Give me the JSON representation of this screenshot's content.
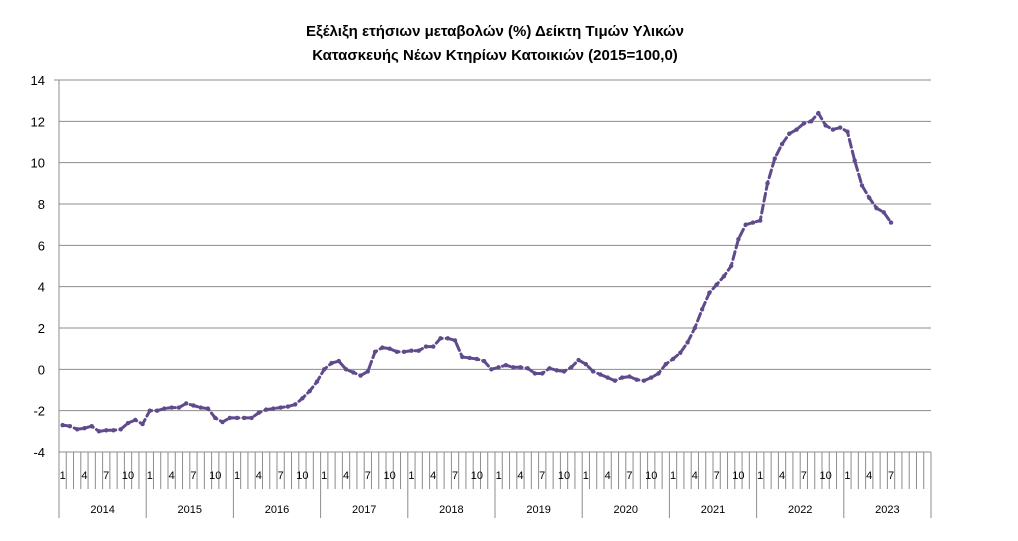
{
  "chart_data": {
    "type": "line",
    "title_line1": "Εξέλιξη ετήσιων μεταβολών (%) Δείκτη Τιμών Υλικών",
    "title_line2": "Κατασκευής Νέων Κτηρίων Κατοικιών (2015=100,0)",
    "ylim": [
      -4,
      14
    ],
    "y_ticks": [
      14,
      12,
      10,
      8,
      6,
      4,
      2,
      0,
      -2,
      -4
    ],
    "grid": true,
    "legend": "none",
    "month_tick_labels": [
      "1",
      "4",
      "7",
      "10"
    ],
    "years": [
      "2014",
      "2015",
      "2016",
      "2017",
      "2018",
      "2019",
      "2020",
      "2021",
      "2022",
      "2023"
    ],
    "series_color": "#5f4b8b",
    "line_style": "dashed",
    "series": [
      {
        "values": [
          -2.7,
          -2.75,
          -2.9,
          -2.85,
          -2.75,
          -3.0,
          -2.95,
          -2.95,
          -2.9,
          -2.6,
          -2.45,
          -2.65,
          -2.0,
          -2.0,
          -1.9,
          -1.85,
          -1.85,
          -1.65,
          -1.75,
          -1.85,
          -1.9,
          -2.35,
          -2.55,
          -2.35,
          -2.35,
          -2.35,
          -2.35,
          -2.1,
          -1.95,
          -1.9,
          -1.85,
          -1.8,
          -1.7,
          -1.4,
          -1.05,
          -0.6,
          0.0,
          0.3,
          0.4,
          0.0,
          -0.15,
          -0.3,
          -0.1,
          0.85,
          1.05,
          1.0,
          0.85,
          0.85,
          0.9,
          0.9,
          1.1,
          1.1,
          1.5,
          1.5,
          1.4,
          0.6,
          0.55,
          0.5,
          0.4,
          0.0,
          0.1,
          0.2,
          0.1,
          0.1,
          0.05,
          -0.2,
          -0.2,
          0.05,
          -0.05,
          -0.1,
          0.1,
          0.45,
          0.25,
          -0.1,
          -0.25,
          -0.4,
          -0.55,
          -0.4,
          -0.35,
          -0.5,
          -0.55,
          -0.4,
          -0.2,
          0.25,
          0.5,
          0.8,
          1.3,
          2.0,
          2.9,
          3.7,
          4.1,
          4.5,
          5.0,
          6.3,
          7.0,
          7.1,
          7.2,
          9.0,
          10.2,
          10.9,
          11.4,
          11.6,
          11.9,
          12.0,
          12.4,
          11.8,
          11.6,
          11.7,
          11.5,
          10.1,
          8.9,
          8.3,
          7.8,
          7.6,
          7.1
        ]
      }
    ]
  }
}
